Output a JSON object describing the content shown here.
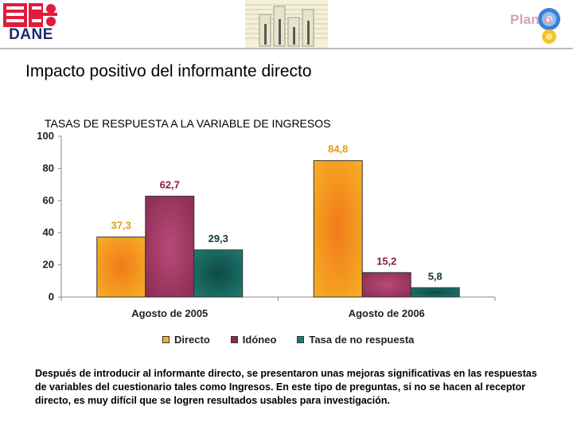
{
  "header": {
    "logo_text": "DANE",
    "brand_text": "Plan b"
  },
  "page": {
    "title": "Impacto positivo del informante directo",
    "note": "Después de introducir al informante directo, se presentaron unas mejoras significativas en las respuestas de variables del cuestionario  tales como Ingresos. En este tipo de preguntas, si no se hacen al receptor directo, es muy difícil que se logren resultados usables para investigación."
  },
  "chart_data": {
    "type": "bar",
    "title": "TASAS DE RESPUESTA A LA VARIABLE DE INGRESOS",
    "categories": [
      "Agosto de 2005",
      "Agosto de 2006"
    ],
    "series": [
      {
        "name": "Directo",
        "values": [
          37.3,
          84.8
        ],
        "labels": [
          "37,3",
          "84,8"
        ],
        "color": "#f5b025",
        "label_color": "#e09a1a"
      },
      {
        "name": "Idóneo",
        "values": [
          62.7,
          15.2
        ],
        "labels": [
          "62,7",
          "15,2"
        ],
        "color": "#8b2c52",
        "label_color": "#8b1a3c"
      },
      {
        "name": "Tasa de no respuesta",
        "values": [
          29.3,
          5.8
        ],
        "labels": [
          "29,3",
          "5,8"
        ],
        "color": "#1f7a72",
        "label_color": "#0f3d38"
      }
    ],
    "ylim": [
      0,
      100
    ],
    "yticks": [
      "0",
      "20",
      "40",
      "60",
      "80",
      "100"
    ],
    "grid": false,
    "legend_position": "bottom"
  }
}
